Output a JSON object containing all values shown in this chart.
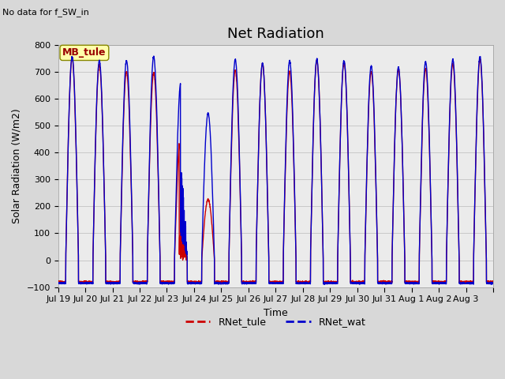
{
  "title": "Net Radiation",
  "subtitle": "No data for f_SW_in",
  "xlabel": "Time",
  "ylabel": "Solar Radiation (W/m2)",
  "ylim": [
    -100,
    800
  ],
  "legend_label1": "RNet_tule",
  "legend_label2": "RNet_wat",
  "color_tule": "#cc0000",
  "color_wat": "#0000cc",
  "annotation_box": "MB_tule",
  "x_tick_labels": [
    "Jul 19",
    "Jul 20",
    "Jul 21",
    "Jul 22",
    "Jul 23",
    "Jul 24",
    "Jul 25",
    "Jul 26",
    "Jul 27",
    "Jul 28",
    "Jul 29",
    "Jul 30",
    "Jul 31",
    "Aug 1",
    "Aug 2",
    "Aug 3"
  ],
  "grid_color": "#c8c8c8",
  "plot_bg_color": "#ebebeb",
  "fig_bg_color": "#d8d8d8",
  "n_days": 16,
  "peaks_tule": [
    750,
    725,
    700,
    695,
    480,
    225,
    705,
    730,
    700,
    740,
    735,
    700,
    710,
    710,
    730,
    745
  ],
  "peaks_wat": [
    755,
    740,
    740,
    755,
    660,
    545,
    745,
    730,
    740,
    745,
    740,
    720,
    715,
    735,
    745,
    755
  ],
  "min_tule": -80,
  "min_wat": -85,
  "samples_per_day": 288,
  "title_fontsize": 13,
  "axis_fontsize": 9,
  "tick_fontsize": 8,
  "linewidth": 1.0
}
